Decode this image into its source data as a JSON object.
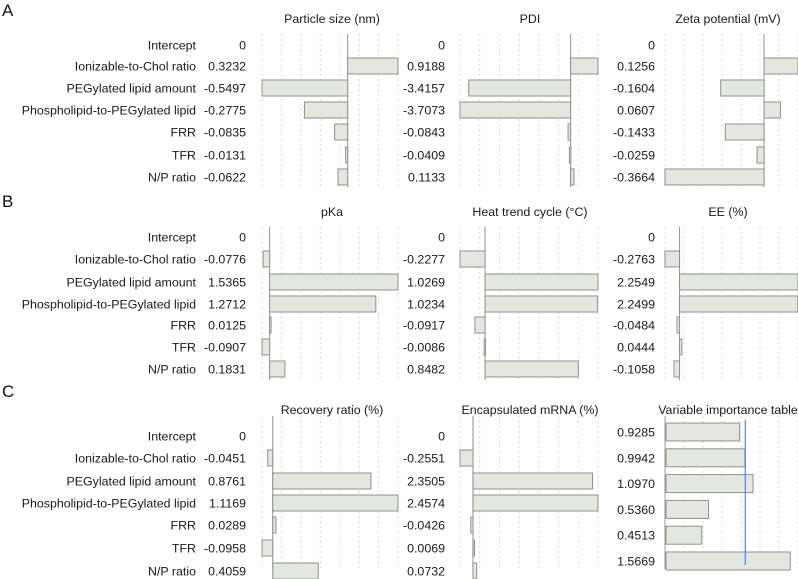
{
  "panel_letters": [
    "A",
    "B",
    "C"
  ],
  "row_labels": [
    "Intercept",
    "Ionizable-to-Chol ratio",
    "PEGylated lipid amount",
    "Phospholipid-to-PEGylated lipid",
    "FRR",
    "TFR",
    "N/P ratio"
  ],
  "colors": {
    "bar_fill": "#e4e6e1",
    "bar_stroke": "#8f928c",
    "axis": "#9a9a9a",
    "grid": "#cfcfcf",
    "line": "#5b8fe0"
  },
  "chart_data": [
    {
      "type": "bar",
      "orientation": "horizontal",
      "row": 0,
      "col": 0,
      "title": "Particle size (nm)",
      "value_labels": [
        "0",
        "0.3232",
        "-0.5497",
        "-0.2775",
        "-0.0835",
        "-0.0131",
        "-0.0622"
      ],
      "values": [
        0,
        0.3232,
        -0.5497,
        -0.2775,
        -0.0835,
        -0.0131,
        -0.0622
      ]
    },
    {
      "type": "bar",
      "orientation": "horizontal",
      "row": 0,
      "col": 1,
      "title": "PDI",
      "value_labels": [
        "0",
        "0.9188",
        "-3.4157",
        "-3.7073",
        "-0.0843",
        "-0.0409",
        "0.1133"
      ],
      "values": [
        0,
        0.9188,
        -3.4157,
        -3.7073,
        -0.0843,
        -0.0409,
        0.1133
      ]
    },
    {
      "type": "bar",
      "orientation": "horizontal",
      "row": 0,
      "col": 2,
      "title": "Zeta potential (mV)",
      "value_labels": [
        "0",
        "0.1256",
        "-0.1604",
        "0.0607",
        "-0.1433",
        "-0.0259",
        "-0.3664"
      ],
      "values": [
        0,
        0.1256,
        -0.1604,
        0.0607,
        -0.1433,
        -0.0259,
        -0.3664
      ]
    },
    {
      "type": "bar",
      "orientation": "horizontal",
      "row": 1,
      "col": 0,
      "title": "pKa",
      "value_labels": [
        "0",
        "-0.0776",
        "1.5365",
        "1.2712",
        "0.0125",
        "-0.0907",
        "0.1831"
      ],
      "values": [
        0,
        -0.0776,
        1.5365,
        1.2712,
        0.0125,
        -0.0907,
        0.1831
      ]
    },
    {
      "type": "bar",
      "orientation": "horizontal",
      "row": 1,
      "col": 1,
      "title": "Heat trend cycle (°C)",
      "value_labels": [
        "0",
        "-0.2277",
        "1.0269",
        "1.0234",
        "-0.0917",
        "-0.0086",
        "0.8482"
      ],
      "values": [
        0,
        -0.2277,
        1.0269,
        1.0234,
        -0.0917,
        -0.0086,
        0.8482
      ]
    },
    {
      "type": "bar",
      "orientation": "horizontal",
      "row": 1,
      "col": 2,
      "title": "EE (%)",
      "value_labels": [
        "0",
        "-0.2763",
        "2.2549",
        "2.2499",
        "-0.0484",
        "0.0444",
        "-0.1058"
      ],
      "values": [
        0,
        -0.2763,
        2.2549,
        2.2499,
        -0.0484,
        0.0444,
        -0.1058
      ]
    },
    {
      "type": "bar",
      "orientation": "horizontal",
      "row": 2,
      "col": 0,
      "title": "Recovery ratio (%)",
      "value_labels": [
        "0",
        "-0.0451",
        "0.8761",
        "1.1169",
        "0.0289",
        "-0.0958",
        "0.4059"
      ],
      "values": [
        0,
        -0.0451,
        0.8761,
        1.1169,
        0.0289,
        -0.0958,
        0.4059
      ]
    },
    {
      "type": "bar",
      "orientation": "horizontal",
      "row": 2,
      "col": 1,
      "title": "Encapsulated mRNA (%)",
      "value_labels": [
        "0",
        "-0.2551",
        "2.3505",
        "2.4574",
        "-0.0426",
        "0.0069",
        "0.0732"
      ],
      "values": [
        0,
        -0.2551,
        2.3505,
        2.4574,
        -0.0426,
        0.0069,
        0.0732
      ]
    },
    {
      "type": "bar",
      "orientation": "horizontal",
      "row": 2,
      "col": 2,
      "title": "Variable importance table",
      "variant": "importance",
      "threshold": 1.0,
      "value_labels": [
        "0.9285",
        "0.9942",
        "1.0970",
        "0.5360",
        "0.4513",
        "1.5669"
      ],
      "values": [
        0.9285,
        0.9942,
        1.097,
        0.536,
        0.4513,
        1.5669
      ]
    }
  ]
}
